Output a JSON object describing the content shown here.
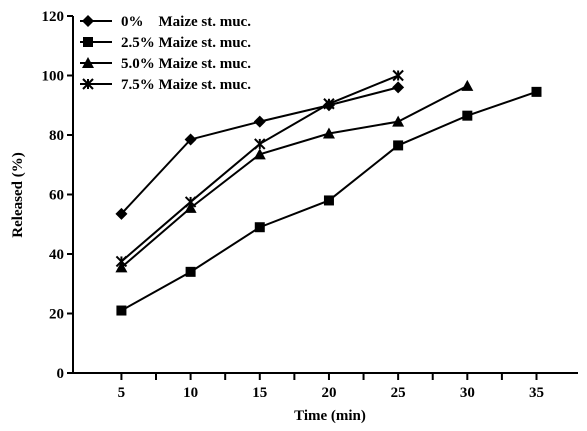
{
  "chart_data": {
    "type": "line",
    "xlabel": "Time (min)",
    "ylabel": "Released (%)",
    "xlim": [
      1.5,
      38
    ],
    "ylim": [
      0,
      120
    ],
    "xticks": [
      5,
      10,
      15,
      20,
      25,
      30,
      35
    ],
    "yticks": [
      0,
      20,
      40,
      60,
      80,
      100,
      120
    ],
    "grid": false,
    "legend_position": "top-left",
    "series": [
      {
        "name": "0%    Maize st. muc.",
        "marker": "diamond",
        "x": [
          5,
          10,
          15,
          20,
          25
        ],
        "y": [
          53.5,
          78.5,
          84.5,
          90,
          96
        ]
      },
      {
        "name": "2.5% Maize st. muc.",
        "marker": "square",
        "x": [
          5,
          10,
          15,
          20,
          25,
          30,
          35
        ],
        "y": [
          21,
          34,
          49,
          58,
          76.5,
          86.5,
          94.5
        ]
      },
      {
        "name": "5.0% Maize st. muc.",
        "marker": "triangle",
        "x": [
          5,
          10,
          15,
          20,
          25,
          30
        ],
        "y": [
          35.5,
          55.5,
          73.5,
          80.5,
          84.5,
          96.5
        ]
      },
      {
        "name": "7.5% Maize st. muc.",
        "marker": "star",
        "x": [
          5,
          10,
          15,
          20,
          25
        ],
        "y": [
          37.5,
          57.5,
          77,
          90.5,
          100
        ]
      }
    ]
  }
}
